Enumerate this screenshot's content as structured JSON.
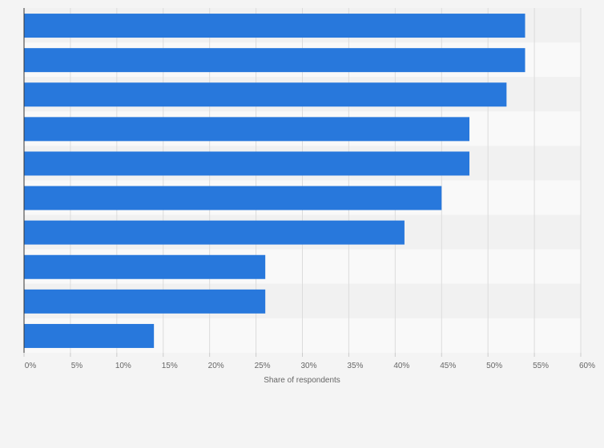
{
  "chart_data": {
    "type": "bar",
    "orientation": "horizontal",
    "categories": [
      "",
      "",
      "",
      "",
      "",
      "",
      "",
      "",
      "",
      ""
    ],
    "values": [
      54,
      54,
      52,
      48,
      48,
      45,
      41,
      26,
      26,
      14
    ],
    "title": "",
    "xlabel": "Share of respondents",
    "ylabel": "",
    "xlim": [
      0,
      60
    ],
    "ticks": [
      0,
      5,
      10,
      15,
      20,
      25,
      30,
      35,
      40,
      45,
      50,
      55,
      60
    ],
    "tick_labels": [
      "0%",
      "5%",
      "10%",
      "15%",
      "20%",
      "25%",
      "30%",
      "35%",
      "40%",
      "45%",
      "50%",
      "55%",
      "60%"
    ],
    "grid": true,
    "colors": {
      "bar": "#2878dc",
      "band_light": "#f9f9f9",
      "band_dark": "#f1f1f1",
      "grid": "#dcdcdc",
      "axis": "#333333",
      "background": "#f4f4f4"
    }
  }
}
